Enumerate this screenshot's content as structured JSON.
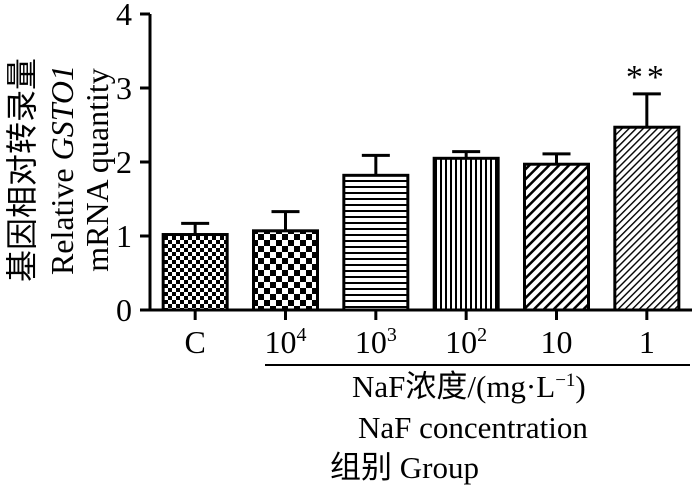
{
  "chart_data": {
    "type": "bar",
    "categories": [
      "C",
      "10^4",
      "10^3",
      "10^2",
      "10",
      "1"
    ],
    "category_labels": [
      {
        "base": "C",
        "sup": ""
      },
      {
        "base": "10",
        "sup": "4"
      },
      {
        "base": "10",
        "sup": "3"
      },
      {
        "base": "10",
        "sup": "2"
      },
      {
        "base": "10",
        "sup": ""
      },
      {
        "base": "1",
        "sup": ""
      }
    ],
    "values": [
      1.02,
      1.07,
      1.82,
      2.05,
      1.97,
      2.47
    ],
    "errors": [
      0.15,
      0.26,
      0.27,
      0.09,
      0.14,
      0.45
    ],
    "annotations": [
      "",
      "",
      "",
      "",
      "",
      "**"
    ],
    "patterns": [
      "checker-fine",
      "checker-coarse",
      "horizontal-lines",
      "vertical-lines",
      "diagonal-coarse",
      "diagonal-fine"
    ],
    "ylim": [
      0,
      4
    ],
    "yticks": [
      0,
      1,
      2,
      3,
      4
    ],
    "ylabel": {
      "line1": "基因相对转录量",
      "line2_prefix": "Relative ",
      "line2_italic": "GSTO1",
      "line3": "mRNA quantity"
    },
    "xlabel": {
      "line1": "NaF浓度/(mg·L",
      "line1_sup": "−1",
      "line1_end": ")",
      "line2": "NaF concentration",
      "line3": "组别 Group"
    },
    "grid": false,
    "legend": "none"
  }
}
